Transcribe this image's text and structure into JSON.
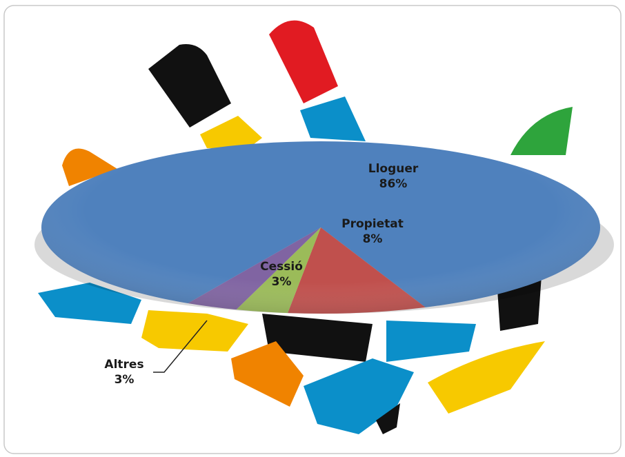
{
  "chart_data": {
    "type": "pie",
    "categories": [
      "Lloguer",
      "Propietat",
      "Cessió",
      "Altres"
    ],
    "values": [
      86,
      8,
      3,
      3
    ],
    "value_labels": [
      "86%",
      "8%",
      "3%",
      "3%"
    ],
    "colors": [
      "#4f81bd",
      "#c0504d",
      "#9bbb59",
      "#8064a2"
    ]
  }
}
